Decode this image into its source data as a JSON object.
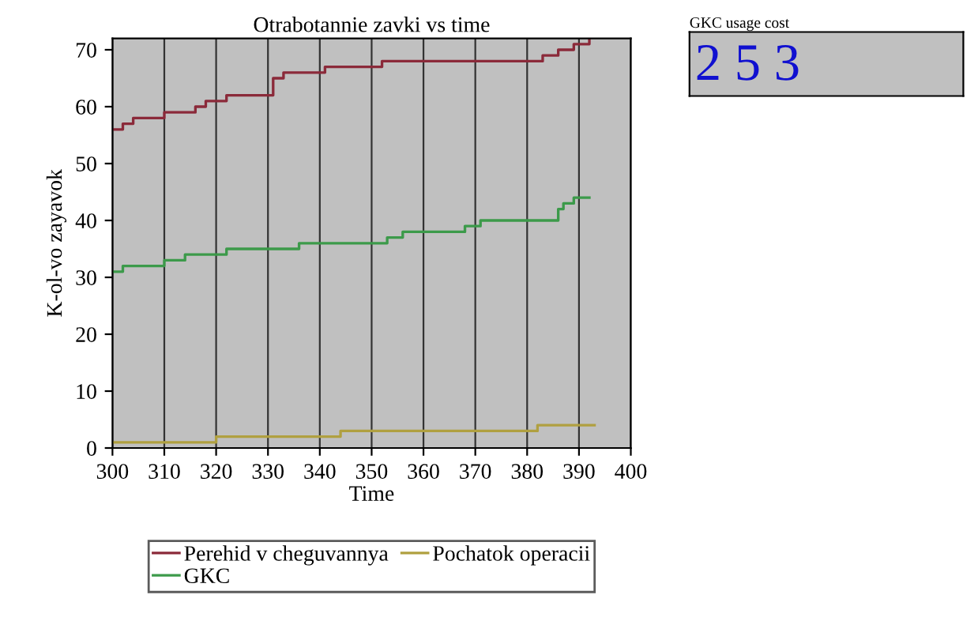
{
  "chart_data": [
    {
      "type": "step",
      "title": "Otrabotannie zavki vs time",
      "xlabel": "Time",
      "ylabel": "K-ol-vo zayavok",
      "xlim": [
        300,
        400
      ],
      "xticks": [
        300,
        310,
        320,
        330,
        340,
        350,
        360,
        370,
        380,
        390,
        400
      ],
      "ylim": [
        0,
        72
      ],
      "yticks": [
        0,
        10,
        20,
        30,
        40,
        50,
        60,
        70
      ],
      "grid": "x",
      "legend": "bottom",
      "series": [
        {
          "name": "Perehid v cheguvannya",
          "color": "#8b2a3a",
          "x": [
            300,
            302,
            304,
            310,
            316,
            318,
            322,
            331,
            333,
            341,
            352,
            383,
            386,
            389,
            392
          ],
          "values": [
            56,
            57,
            58,
            59,
            60,
            61,
            62,
            65,
            66,
            67,
            68,
            69,
            70,
            71,
            72
          ]
        },
        {
          "name": "GKC",
          "color": "#3c9a4a",
          "x": [
            300,
            302,
            310,
            314,
            322,
            336,
            353,
            356,
            368,
            371,
            386,
            387,
            389,
            392
          ],
          "values": [
            31,
            32,
            33,
            34,
            35,
            36,
            37,
            38,
            39,
            40,
            42,
            43,
            44,
            44
          ]
        },
        {
          "name": "Pochatok operacii",
          "color": "#b0a040",
          "x": [
            300,
            320,
            344,
            382,
            393
          ],
          "values": [
            1,
            2,
            3,
            4,
            4
          ]
        }
      ]
    },
    {
      "type": "other",
      "title": "GKC usage cost",
      "annotations": [
        "2 5 3"
      ]
    }
  ]
}
